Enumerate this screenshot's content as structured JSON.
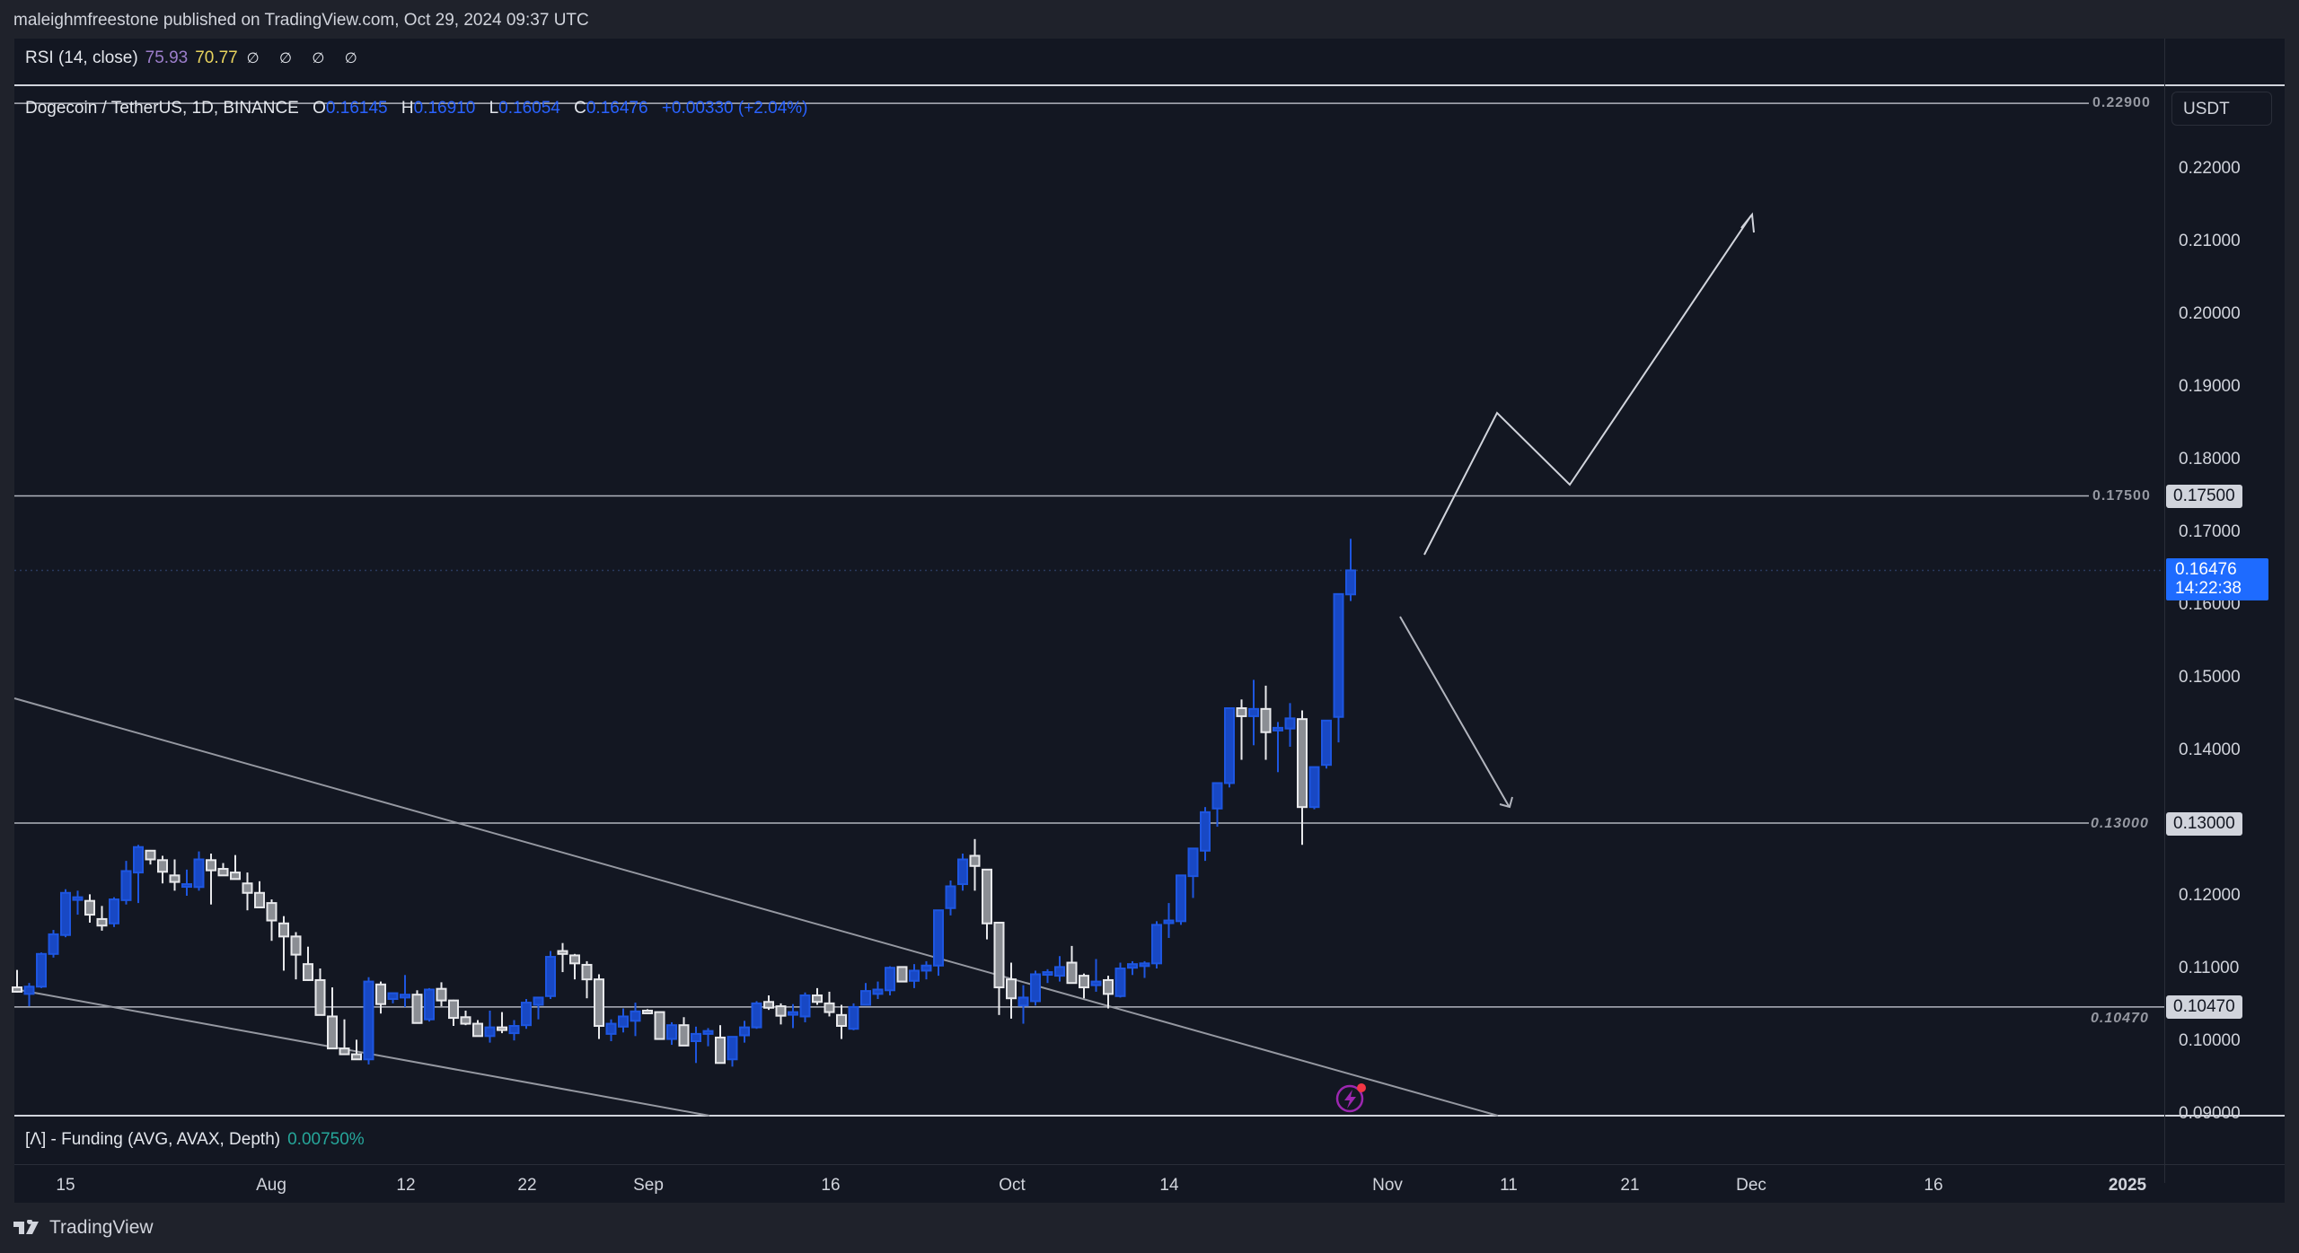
{
  "header": {
    "publisher": "maleighmfreestone published on TradingView.com, Oct 29, 2024 09:37 UTC"
  },
  "rsi_legend": {
    "name": "RSI (14, close)",
    "value": "75.93",
    "ma": "70.77",
    "na": "∅ ∅ ∅ ∅"
  },
  "main_legend": {
    "symbol": "Dogecoin / TetherUS, 1D, BINANCE",
    "o_label": "O",
    "o": "0.16145",
    "h_label": "H",
    "h": "0.16910",
    "l_label": "L",
    "l": "0.16054",
    "c_label": "C",
    "c": "0.16476",
    "change": "+0.00330 (+2.04%)"
  },
  "funding_legend": {
    "name": "[Λ] - Funding (AVG, AVAX, Depth)",
    "value": "0.00750%"
  },
  "price_axis": {
    "currency": "USDT",
    "ticks": [
      "0.22000",
      "0.21000",
      "0.20000",
      "0.19000",
      "0.18000",
      "0.17000",
      "0.16000",
      "0.15000",
      "0.14000",
      "0.12000",
      "0.11000",
      "0.10000",
      "0.09000"
    ],
    "current_price": "0.16476",
    "countdown": "14:22:38",
    "levels": [
      {
        "label": "0.17500",
        "axis_label": "0.17500"
      },
      {
        "label": "0.13000",
        "axis_label": "0.13000"
      },
      {
        "label": "0.10470",
        "axis_label": "0.10470"
      },
      {
        "label": "0.22900"
      }
    ]
  },
  "time_axis": {
    "ticks": [
      "15",
      "Aug",
      "12",
      "22",
      "Sep",
      "16",
      "Oct",
      "14",
      "Nov",
      "11",
      "21",
      "Dec",
      "16",
      "2025"
    ]
  },
  "brand": {
    "name": "TradingView"
  },
  "colors": {
    "up": "#1848c4",
    "down": "#8b8e94",
    "background": "#131722",
    "accent": "#1e6bff"
  },
  "chart_data": {
    "type": "candlestick",
    "title": "Dogecoin / TetherUS, 1D, BINANCE",
    "xlabel": "",
    "ylabel": "USDT",
    "ylim": [
      0.09,
      0.229
    ],
    "x_range": [
      "2024-07-11",
      "2024-12-31"
    ],
    "last": {
      "date": "2024-10-29",
      "open": 0.16145,
      "high": 0.1691,
      "low": 0.16054,
      "close": 0.16476,
      "change": 0.0033,
      "change_pct": 2.04
    },
    "horizontal_levels": [
      0.229,
      0.175,
      0.13,
      0.1047,
      0.09
    ],
    "trendlines": [
      {
        "from": [
          "2024-07-11",
          0.1405
        ],
        "to": [
          "2024-11-11",
          0.09
        ],
        "label": "descending resistance"
      },
      {
        "from": [
          "2024-07-11",
          0.1065
        ],
        "to": [
          "2024-09-09",
          0.09
        ],
        "label": "descending support"
      }
    ],
    "projections": [
      {
        "type": "bullish path",
        "points": [
          [
            "2024-11-01",
            0.1663
          ],
          [
            "2024-11-05",
            0.1867
          ],
          [
            "2024-11-09",
            0.177
          ],
          [
            "2024-11-21",
            0.2135
          ]
        ]
      },
      {
        "type": "bearish arrow",
        "points": [
          [
            "2024-10-31",
            0.1583
          ],
          [
            "2024-11-07",
            0.131
          ]
        ]
      }
    ],
    "rsi": {
      "length": 14,
      "value": 75.93,
      "ma": 70.77
    },
    "funding": {
      "value_pct": 0.0075
    },
    "candles": [
      [
        0.1074,
        0.1098,
        0.1067,
        0.1068
      ],
      [
        0.1065,
        0.108,
        0.1048,
        0.1075
      ],
      [
        0.1075,
        0.1122,
        0.1073,
        0.112
      ],
      [
        0.112,
        0.1153,
        0.1115,
        0.1147
      ],
      [
        0.1146,
        0.1209,
        0.1143,
        0.1204
      ],
      [
        0.1198,
        0.1207,
        0.1174,
        0.1198
      ],
      [
        0.1193,
        0.1202,
        0.1163,
        0.1174
      ],
      [
        0.1168,
        0.1186,
        0.1152,
        0.1159
      ],
      [
        0.1162,
        0.1198,
        0.1157,
        0.1195
      ],
      [
        0.1194,
        0.1248,
        0.1188,
        0.1234
      ],
      [
        0.1232,
        0.127,
        0.119,
        0.1267
      ],
      [
        0.1262,
        0.1263,
        0.1243,
        0.125
      ],
      [
        0.1249,
        0.1255,
        0.1217,
        0.1233
      ],
      [
        0.1228,
        0.125,
        0.1207,
        0.1219
      ],
      [
        0.1216,
        0.1236,
        0.12,
        0.1216
      ],
      [
        0.1212,
        0.1261,
        0.1207,
        0.125
      ],
      [
        0.1249,
        0.1258,
        0.1188,
        0.1235
      ],
      [
        0.1237,
        0.1245,
        0.1229,
        0.1228
      ],
      [
        0.1232,
        0.1256,
        0.1223,
        0.1223
      ],
      [
        0.1217,
        0.1232,
        0.118,
        0.1204
      ],
      [
        0.1204,
        0.122,
        0.1192,
        0.1184
      ],
      [
        0.119,
        0.1195,
        0.1138,
        0.1166
      ],
      [
        0.1162,
        0.1172,
        0.1097,
        0.1144
      ],
      [
        0.1144,
        0.115,
        0.1085,
        0.1119
      ],
      [
        0.1106,
        0.113,
        0.1083,
        0.1084
      ],
      [
        0.1084,
        0.11,
        0.104,
        0.1036
      ],
      [
        0.1034,
        0.1074,
        0.0997,
        0.099
      ],
      [
        0.099,
        0.103,
        0.0985,
        0.0982
      ],
      [
        0.0982,
        0.1002,
        0.0975,
        0.0975
      ],
      [
        0.0975,
        0.1088,
        0.0968,
        0.1082
      ],
      [
        0.1078,
        0.1082,
        0.1038,
        0.1051
      ],
      [
        0.1058,
        0.1066,
        0.1052,
        0.1066
      ],
      [
        0.106,
        0.1091,
        0.1047,
        0.1064
      ],
      [
        0.1064,
        0.107,
        0.1025,
        0.1025
      ],
      [
        0.103,
        0.1073,
        0.1027,
        0.1071
      ],
      [
        0.1072,
        0.1081,
        0.1048,
        0.1056
      ],
      [
        0.1056,
        0.1057,
        0.1021,
        0.1032
      ],
      [
        0.1033,
        0.1042,
        0.1022,
        0.1024
      ],
      [
        0.1024,
        0.1029,
        0.1007,
        0.1007
      ],
      [
        0.1007,
        0.1042,
        0.0998,
        0.1019
      ],
      [
        0.1019,
        0.104,
        0.1011,
        0.1018
      ],
      [
        0.1011,
        0.1029,
        0.1001,
        0.1021
      ],
      [
        0.1022,
        0.1058,
        0.1017,
        0.1053
      ],
      [
        0.105,
        0.1057,
        0.103,
        0.106
      ],
      [
        0.1062,
        0.1124,
        0.1058,
        0.1116
      ],
      [
        0.1124,
        0.1135,
        0.1095,
        0.112
      ],
      [
        0.1118,
        0.112,
        0.1085,
        0.1107
      ],
      [
        0.1105,
        0.111,
        0.1059,
        0.1085
      ],
      [
        0.1085,
        0.1092,
        0.1003,
        0.1021
      ],
      [
        0.101,
        0.103,
        0.1,
        0.1024
      ],
      [
        0.102,
        0.1045,
        0.1012,
        0.1034
      ],
      [
        0.1028,
        0.1053,
        0.1007,
        0.1041
      ],
      [
        0.1042,
        0.1044,
        0.1038,
        0.104
      ],
      [
        0.104,
        0.104,
        0.1004,
        0.1003
      ],
      [
        0.1003,
        0.1026,
        0.0995,
        0.1022
      ],
      [
        0.1022,
        0.1033,
        0.1008,
        0.0994
      ],
      [
        0.1,
        0.102,
        0.097,
        0.101
      ],
      [
        0.101,
        0.1018,
        0.0993,
        0.1014
      ],
      [
        0.1005,
        0.1022,
        0.0988,
        0.097
      ],
      [
        0.0975,
        0.1006,
        0.0965,
        0.1006
      ],
      [
        0.1008,
        0.1028,
        0.0998,
        0.1019
      ],
      [
        0.1019,
        0.1055,
        0.1017,
        0.1052
      ],
      [
        0.1054,
        0.1063,
        0.1043,
        0.1046
      ],
      [
        0.1048,
        0.1052,
        0.1023,
        0.1035
      ],
      [
        0.1037,
        0.1051,
        0.1018,
        0.104
      ],
      [
        0.1034,
        0.1067,
        0.1026,
        0.1063
      ],
      [
        0.1063,
        0.1073,
        0.105,
        0.1054
      ],
      [
        0.1052,
        0.1068,
        0.1034,
        0.104
      ],
      [
        0.1036,
        0.105,
        0.1003,
        0.1021
      ],
      [
        0.1017,
        0.1052,
        0.1015,
        0.1047
      ],
      [
        0.105,
        0.108,
        0.1049,
        0.1069
      ],
      [
        0.1065,
        0.1082,
        0.1058,
        0.1071
      ],
      [
        0.107,
        0.1103,
        0.1063,
        0.1101
      ],
      [
        0.1102,
        0.1103,
        0.1083,
        0.1082
      ],
      [
        0.1083,
        0.1106,
        0.1073,
        0.1097
      ],
      [
        0.1097,
        0.111,
        0.1085,
        0.1104
      ],
      [
        0.1104,
        0.1178,
        0.109,
        0.118
      ],
      [
        0.1183,
        0.1221,
        0.1173,
        0.1213
      ],
      [
        0.1216,
        0.1258,
        0.1207,
        0.125
      ],
      [
        0.1255,
        0.1278,
        0.1207,
        0.1241
      ],
      [
        0.1236,
        0.1236,
        0.114,
        0.1162
      ],
      [
        0.1163,
        0.1148,
        0.1036,
        0.1074
      ],
      [
        0.1085,
        0.1108,
        0.1031,
        0.1059
      ],
      [
        0.1049,
        0.1077,
        0.1024,
        0.106
      ],
      [
        0.1055,
        0.1097,
        0.1049,
        0.1092
      ],
      [
        0.1092,
        0.1099,
        0.108,
        0.1095
      ],
      [
        0.109,
        0.1117,
        0.1082,
        0.1102
      ],
      [
        0.1108,
        0.1131,
        0.109,
        0.108
      ],
      [
        0.109,
        0.1093,
        0.1059,
        0.1074
      ],
      [
        0.1077,
        0.1113,
        0.1068,
        0.1082
      ],
      [
        0.1084,
        0.109,
        0.1045,
        0.1065
      ],
      [
        0.1062,
        0.1108,
        0.106,
        0.11
      ],
      [
        0.1101,
        0.111,
        0.1091,
        0.1106
      ],
      [
        0.1106,
        0.111,
        0.1087,
        0.1107
      ],
      [
        0.1107,
        0.1165,
        0.11,
        0.116
      ],
      [
        0.1164,
        0.119,
        0.1142,
        0.1166
      ],
      [
        0.1165,
        0.1227,
        0.116,
        0.1228
      ],
      [
        0.1227,
        0.1264,
        0.1197,
        0.1265
      ],
      [
        0.1262,
        0.1322,
        0.1248,
        0.1315
      ],
      [
        0.132,
        0.1352,
        0.1295,
        0.1355
      ],
      [
        0.1355,
        0.1453,
        0.1349,
        0.1458
      ],
      [
        0.1458,
        0.147,
        0.1387,
        0.1447
      ],
      [
        0.1447,
        0.1497,
        0.1407,
        0.1457
      ],
      [
        0.1457,
        0.1489,
        0.1387,
        0.1425
      ],
      [
        0.1428,
        0.1439,
        0.137,
        0.1431
      ],
      [
        0.143,
        0.1465,
        0.1405,
        0.1444
      ],
      [
        0.1443,
        0.1455,
        0.127,
        0.1322
      ],
      [
        0.1322,
        0.1335,
        0.1319,
        0.1377
      ],
      [
        0.138,
        0.1435,
        0.1375,
        0.1441
      ],
      [
        0.1446,
        0.1616,
        0.1411,
        0.1615
      ],
      [
        0.16145,
        0.1691,
        0.16054,
        0.16476
      ]
    ]
  }
}
